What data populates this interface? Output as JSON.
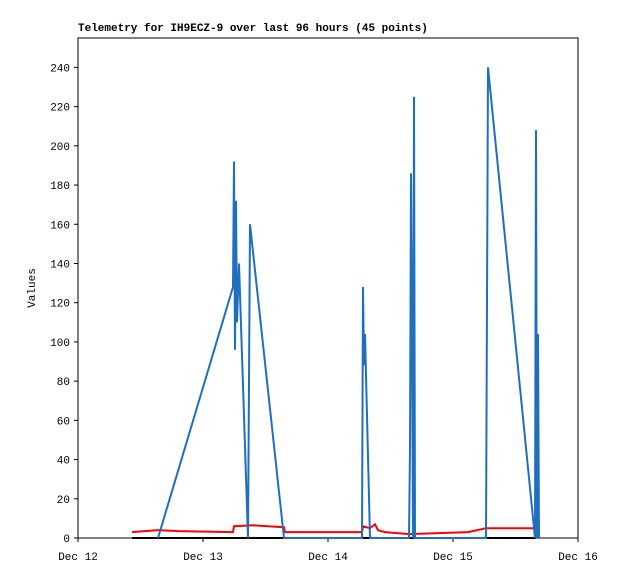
{
  "chart_data": {
    "type": "line",
    "title": "Telemetry for IH9ECZ-9 over last 96 hours (45 points)",
    "ylabel": "Values",
    "xlim": [
      12,
      16
    ],
    "xticks": [
      {
        "value": 12,
        "label": "Dec 12"
      },
      {
        "value": 13,
        "label": "Dec 13"
      },
      {
        "value": 14,
        "label": "Dec 14"
      },
      {
        "value": 15,
        "label": "Dec 15"
      },
      {
        "value": 16,
        "label": "Dec 16"
      }
    ],
    "ylim": [
      0,
      255
    ],
    "yticks": [
      0,
      20,
      40,
      60,
      80,
      100,
      120,
      140,
      160,
      180,
      200,
      220,
      240
    ],
    "series": [
      {
        "color": "#000000",
        "x": [
          12.432,
          15.664
        ],
        "values": [
          0,
          0
        ]
      },
      {
        "color": "#ff0000",
        "x": [
          12.432,
          12.64,
          12.8,
          13.24,
          13.248,
          13.4,
          13.648,
          13.656,
          14.272,
          14.28,
          14.336,
          14.376,
          14.4,
          14.456,
          14.648,
          15.12,
          15.264,
          15.664
        ],
        "values": [
          3,
          4,
          3.5,
          3,
          6,
          6.5,
          5.5,
          3,
          3,
          6,
          5,
          7,
          4,
          3,
          2,
          3,
          5,
          5
        ]
      },
      {
        "color": "#1f6fbf",
        "x": [
          12.64,
          13.24,
          13.248,
          13.256,
          13.264,
          13.272,
          13.288,
          13.36,
          13.376,
          13.648,
          14.272,
          14.28,
          14.288,
          14.296,
          14.336,
          14.648,
          14.656,
          14.664,
          14.672,
          14.68,
          14.688,
          14.696,
          15.264,
          15.272,
          15.28,
          15.656,
          15.664,
          15.672,
          15.68,
          15.688
        ],
        "values": [
          0,
          128,
          192,
          96,
          172,
          110,
          140,
          0,
          160,
          0,
          0,
          128,
          88,
          104,
          0,
          0,
          46,
          186,
          112,
          0,
          225,
          0,
          0,
          120,
          240,
          0,
          208,
          0,
          104,
          0
        ]
      }
    ]
  }
}
